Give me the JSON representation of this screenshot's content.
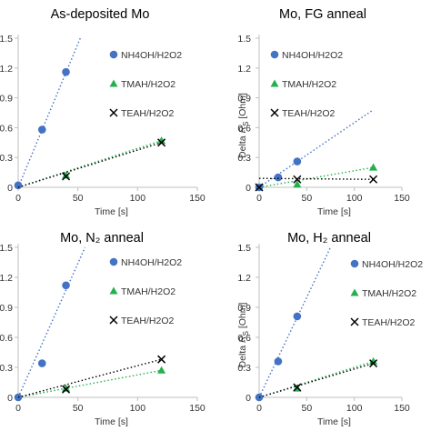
{
  "chart_data": [
    {
      "type": "scatter",
      "title": "As-deposited Mo",
      "xlabel": "Time [s]",
      "ylabel": "",
      "xlim": [
        0,
        150
      ],
      "ylim": [
        0,
        1.5
      ],
      "x_ticks": [
        "0",
        "50",
        "100",
        "150"
      ],
      "y_ticks": [
        "0",
        "0.3",
        "0.6",
        "0.9",
        "1.2",
        "1.5"
      ],
      "grid": false,
      "legend": "right",
      "series": [
        {
          "name": "NH4OH/H2O2",
          "marker": "circle",
          "color": "#4472C4",
          "x": [
            0,
            20,
            40
          ],
          "y": [
            0.02,
            0.58,
            1.16
          ],
          "trend": [
            [
              0,
              0
            ],
            [
              52,
              1.5
            ]
          ]
        },
        {
          "name": "TMAH/H2O2",
          "marker": "triangle",
          "color": "#22B14C",
          "x": [
            40,
            120
          ],
          "y": [
            0.12,
            0.47
          ],
          "trend": [
            [
              0,
              0
            ],
            [
              120,
              0.47
            ]
          ]
        },
        {
          "name": "TEAH/H2O2",
          "marker": "x",
          "color": "#000000",
          "x": [
            40,
            120
          ],
          "y": [
            0.11,
            0.45
          ],
          "trend": [
            [
              0,
              0
            ],
            [
              120,
              0.45
            ]
          ]
        }
      ]
    },
    {
      "type": "scatter",
      "title": "Mo, FG anneal",
      "xlabel": "Time [s]",
      "ylabel": "Delta R_S [Ohm]",
      "xlim": [
        0,
        150
      ],
      "ylim": [
        0,
        1.5
      ],
      "x_ticks": [
        "0",
        "50",
        "100",
        "150"
      ],
      "y_ticks": [
        "0",
        "0.3",
        "0.6",
        "0.9",
        "1.2",
        "1.5"
      ],
      "grid": false,
      "legend": "right",
      "series": [
        {
          "name": "NH4OH/H2O2",
          "marker": "circle",
          "color": "#4472C4",
          "x": [
            0,
            20,
            40
          ],
          "y": [
            0.0,
            0.1,
            0.26
          ],
          "trend": [
            [
              0,
              0
            ],
            [
              120,
              0.78
            ]
          ]
        },
        {
          "name": "TMAH/H2O2",
          "marker": "triangle",
          "color": "#22B14C",
          "x": [
            40,
            120
          ],
          "y": [
            0.03,
            0.2
          ],
          "trend": [
            [
              0,
              0
            ],
            [
              120,
              0.2
            ]
          ]
        },
        {
          "name": "TEAH/H2O2",
          "marker": "x",
          "color": "#000000",
          "x": [
            0,
            40,
            120
          ],
          "y": [
            0.0,
            0.08,
            0.08
          ],
          "trend": [
            [
              0,
              0.09
            ],
            [
              120,
              0.08
            ]
          ]
        }
      ]
    },
    {
      "type": "scatter",
      "title": "Mo, N₂ anneal",
      "xlabel": "Time [s]",
      "ylabel": "",
      "xlim": [
        0,
        150
      ],
      "ylim": [
        0,
        1.5
      ],
      "x_ticks": [
        "0",
        "50",
        "100",
        "150"
      ],
      "y_ticks": [
        "0",
        "0.3",
        "0.6",
        "0.9",
        "1.2",
        "1.5"
      ],
      "grid": false,
      "legend": "right",
      "series": [
        {
          "name": "NH4OH/H2O2",
          "marker": "circle",
          "color": "#4472C4",
          "x": [
            0,
            20,
            40
          ],
          "y": [
            0.0,
            0.34,
            1.12
          ],
          "trend": [
            [
              0,
              0
            ],
            [
              56,
              1.5
            ]
          ]
        },
        {
          "name": "TMAH/H2O2",
          "marker": "triangle",
          "color": "#22B14C",
          "x": [
            40,
            120
          ],
          "y": [
            0.09,
            0.27
          ],
          "trend": [
            [
              0,
              0
            ],
            [
              120,
              0.27
            ]
          ]
        },
        {
          "name": "TEAH/H2O2",
          "marker": "x",
          "color": "#000000",
          "x": [
            40,
            120
          ],
          "y": [
            0.08,
            0.38
          ],
          "trend": [
            [
              0,
              0
            ],
            [
              120,
              0.38
            ]
          ]
        }
      ]
    },
    {
      "type": "scatter",
      "title": "Mo, H₂ anneal",
      "xlabel": "Time [s]",
      "ylabel": "Delta R_S [Ohm]",
      "xlim": [
        0,
        150
      ],
      "ylim": [
        0,
        1.5
      ],
      "x_ticks": [
        "0",
        "50",
        "100",
        "150"
      ],
      "y_ticks": [
        "0",
        "0.3",
        "0.6",
        "0.9",
        "1.2",
        "1.5"
      ],
      "grid": false,
      "legend": "right",
      "series": [
        {
          "name": "NH4OH/H2O2",
          "marker": "circle",
          "color": "#4472C4",
          "x": [
            0,
            20,
            40
          ],
          "y": [
            0.0,
            0.36,
            0.81
          ],
          "trend": [
            [
              0,
              0
            ],
            [
              75,
              1.5
            ]
          ]
        },
        {
          "name": "TMAH/H2O2",
          "marker": "triangle",
          "color": "#22B14C",
          "x": [
            40,
            120
          ],
          "y": [
            0.09,
            0.36
          ],
          "trend": [
            [
              0,
              0
            ],
            [
              120,
              0.36
            ]
          ]
        },
        {
          "name": "TEAH/H2O2",
          "marker": "x",
          "color": "#000000",
          "x": [
            40,
            120
          ],
          "y": [
            0.1,
            0.34
          ],
          "trend": [
            [
              0,
              0
            ],
            [
              120,
              0.34
            ]
          ]
        }
      ]
    }
  ]
}
